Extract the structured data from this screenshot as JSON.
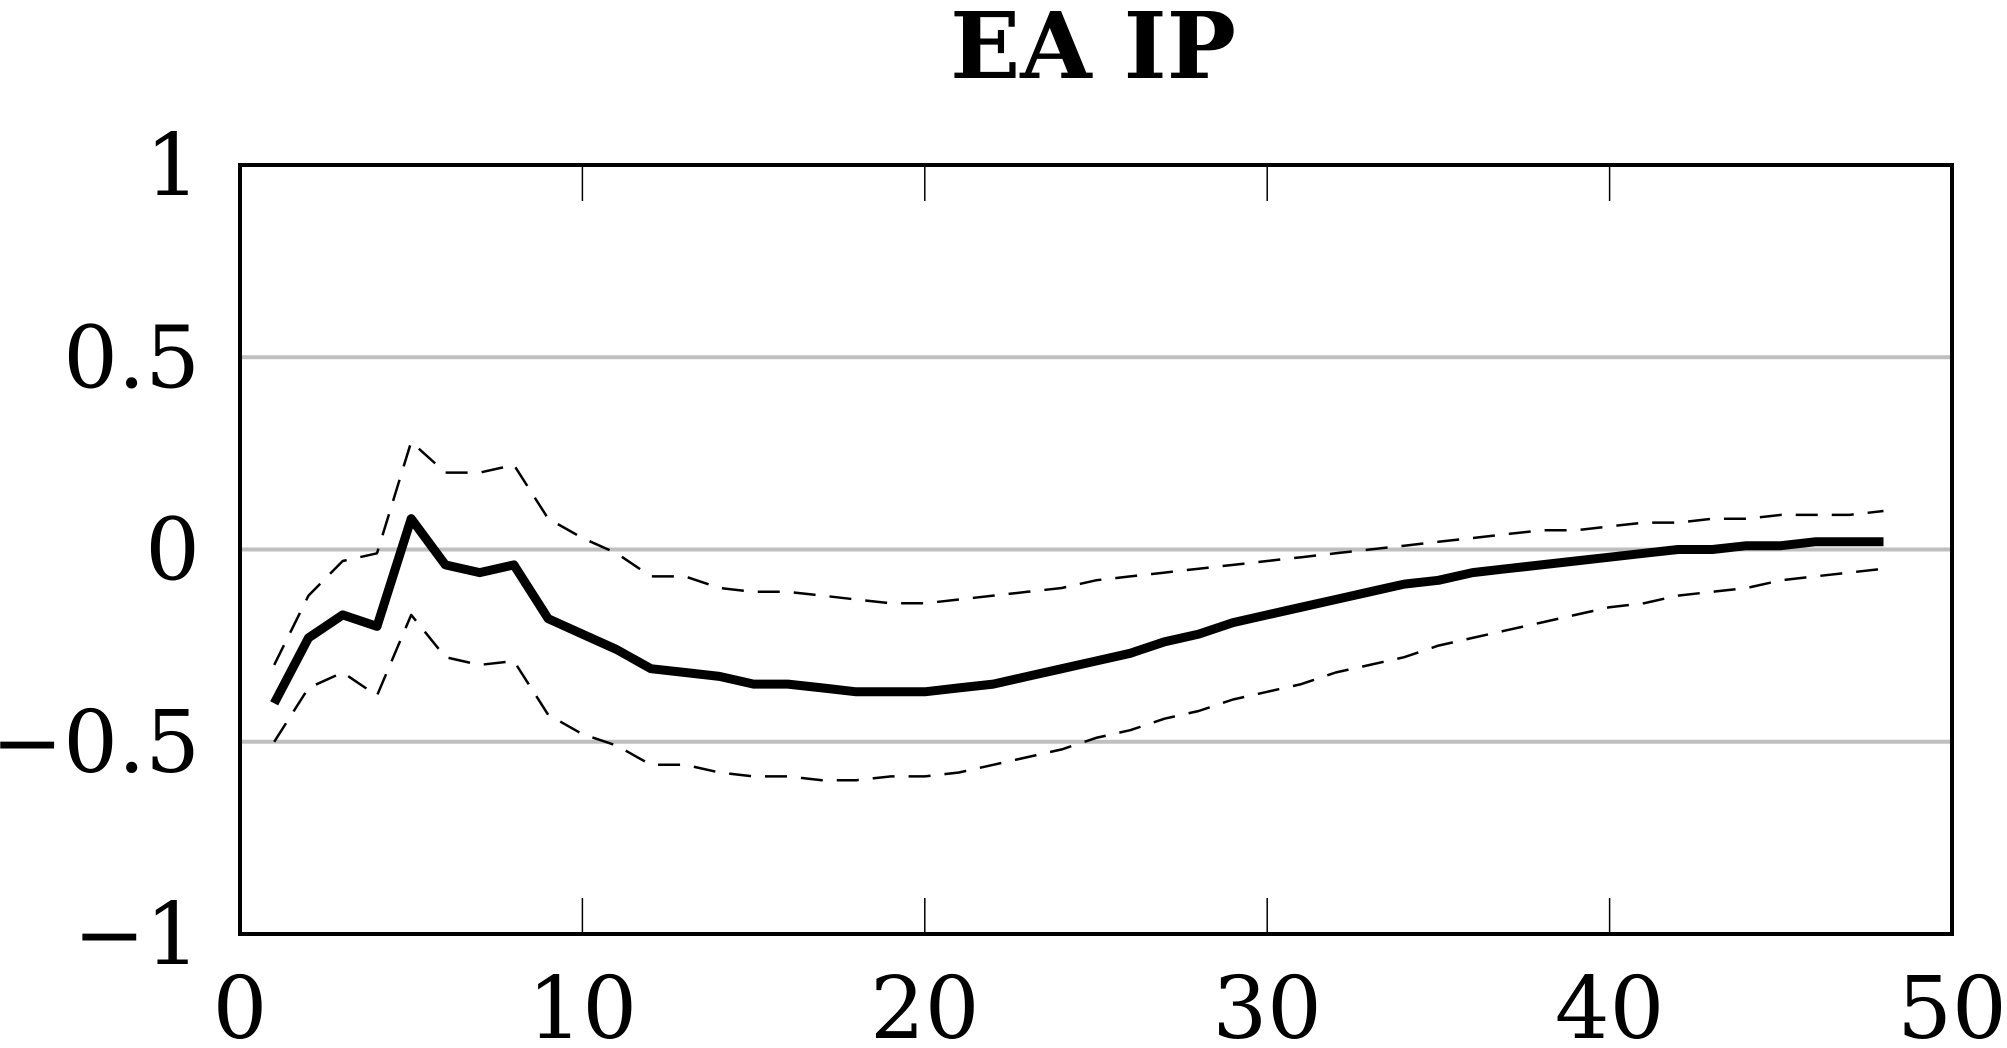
{
  "chart_data": {
    "type": "line",
    "title": "EA IP",
    "xlabel": "",
    "ylabel": "",
    "xlim": [
      0,
      50
    ],
    "ylim": [
      -1,
      1
    ],
    "x_ticks": [
      0,
      10,
      20,
      30,
      40,
      50
    ],
    "x_tick_labels": [
      "0",
      "10",
      "20",
      "30",
      "40",
      "50"
    ],
    "y_ticks": [
      -1,
      -0.5,
      0,
      0.5,
      1
    ],
    "y_tick_labels": [
      "−1",
      "−0.5",
      "0",
      "0.5",
      "1"
    ],
    "y_grid": true,
    "x_grid": false,
    "x": [
      1,
      2,
      3,
      4,
      5,
      6,
      7,
      8,
      9,
      10,
      11,
      12,
      13,
      14,
      15,
      16,
      17,
      18,
      19,
      20,
      21,
      22,
      23,
      24,
      25,
      26,
      27,
      28,
      29,
      30,
      31,
      32,
      33,
      34,
      35,
      36,
      37,
      38,
      39,
      40,
      41,
      42,
      43,
      44,
      45,
      46,
      47,
      48
    ],
    "series": [
      {
        "style": "solid",
        "color": "#000000",
        "values": [
          -0.4,
          -0.23,
          -0.17,
          -0.2,
          0.08,
          -0.04,
          -0.06,
          -0.04,
          -0.18,
          -0.22,
          -0.26,
          -0.31,
          -0.32,
          -0.33,
          -0.35,
          -0.35,
          -0.36,
          -0.37,
          -0.37,
          -0.37,
          -0.36,
          -0.35,
          -0.33,
          -0.31,
          -0.29,
          -0.27,
          -0.24,
          -0.22,
          -0.19,
          -0.17,
          -0.15,
          -0.13,
          -0.11,
          -0.09,
          -0.08,
          -0.06,
          -0.05,
          -0.04,
          -0.03,
          -0.02,
          -0.01,
          0.0,
          0.0,
          0.01,
          0.01,
          0.02,
          0.02,
          0.02
        ]
      },
      {
        "style": "dashed",
        "color": "#000000",
        "values": [
          -0.3,
          -0.12,
          -0.03,
          -0.01,
          0.28,
          0.2,
          0.2,
          0.22,
          0.08,
          0.03,
          -0.01,
          -0.07,
          -0.07,
          -0.1,
          -0.11,
          -0.11,
          -0.12,
          -0.13,
          -0.14,
          -0.14,
          -0.13,
          -0.12,
          -0.11,
          -0.1,
          -0.08,
          -0.07,
          -0.06,
          -0.05,
          -0.04,
          -0.03,
          -0.02,
          -0.01,
          0.0,
          0.01,
          0.02,
          0.03,
          0.04,
          0.05,
          0.05,
          0.06,
          0.07,
          0.07,
          0.08,
          0.08,
          0.09,
          0.09,
          0.09,
          0.1
        ]
      },
      {
        "style": "dashed",
        "color": "#000000",
        "values": [
          -0.5,
          -0.36,
          -0.32,
          -0.38,
          -0.17,
          -0.28,
          -0.3,
          -0.29,
          -0.43,
          -0.48,
          -0.51,
          -0.56,
          -0.56,
          -0.58,
          -0.59,
          -0.59,
          -0.6,
          -0.6,
          -0.59,
          -0.59,
          -0.58,
          -0.56,
          -0.54,
          -0.52,
          -0.49,
          -0.47,
          -0.44,
          -0.42,
          -0.39,
          -0.37,
          -0.35,
          -0.32,
          -0.3,
          -0.28,
          -0.25,
          -0.23,
          -0.21,
          -0.19,
          -0.17,
          -0.15,
          -0.14,
          -0.12,
          -0.11,
          -0.1,
          -0.08,
          -0.07,
          -0.06,
          -0.05
        ]
      }
    ],
    "colors": {
      "frame": "#000000",
      "grid": "#bfbfbf",
      "line": "#000000"
    }
  }
}
